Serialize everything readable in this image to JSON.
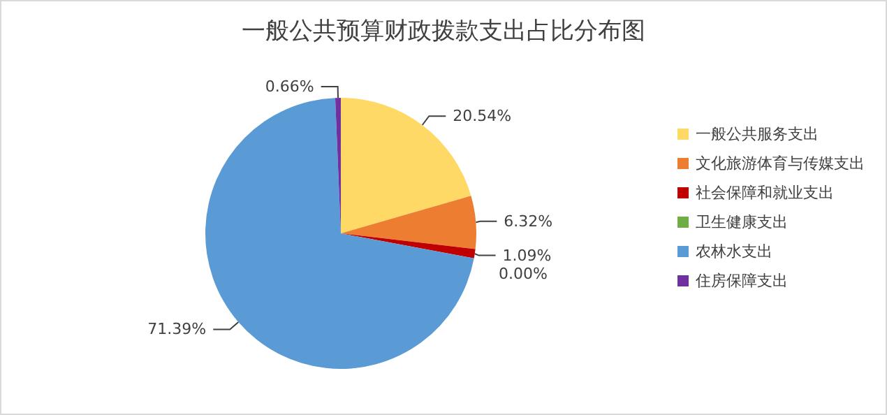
{
  "chart_data": {
    "type": "pie",
    "title": "一般公共预算财政拨款支出占比分布图",
    "categories": [
      "一般公共服务支出",
      "文化旅游体育与传媒支出",
      "社会保障和就业支出",
      "卫生健康支出",
      "农林水支出",
      "住房保障支出"
    ],
    "values": [
      20.54,
      6.32,
      1.09,
      0.0,
      71.39,
      0.66
    ],
    "value_labels": [
      "20.54%",
      "6.32%",
      "1.09%",
      "0.00%",
      "71.39%",
      "0.66%"
    ],
    "colors": [
      "#ffd966",
      "#ed7d31",
      "#c00000",
      "#70ad47",
      "#5b9bd5",
      "#7030a0"
    ],
    "legend": "right"
  }
}
